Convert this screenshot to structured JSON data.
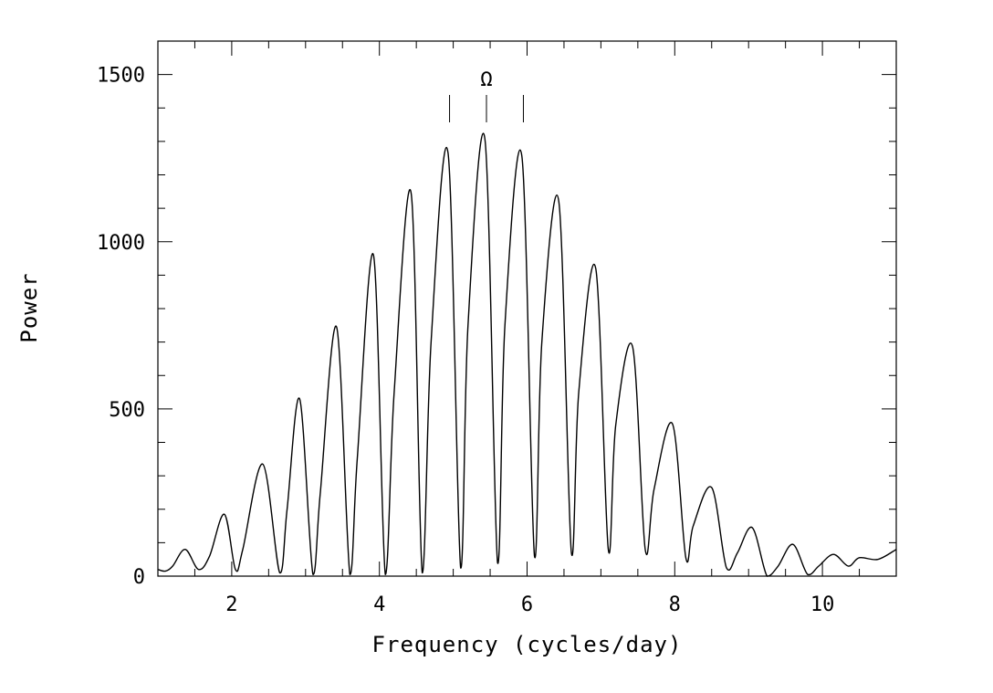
{
  "chart_data": {
    "type": "line",
    "title": "",
    "xlabel": "Frequency (cycles/day)",
    "ylabel": "Power",
    "xlim": [
      1,
      11
    ],
    "ylim": [
      0,
      1600
    ],
    "x_ticks": [
      2,
      4,
      6,
      8,
      10
    ],
    "x_tick_labels": [
      "2",
      "4",
      "6",
      "8",
      "10"
    ],
    "y_ticks": [
      0,
      500,
      1000,
      1500
    ],
    "y_tick_labels": [
      "0",
      "500",
      "1000",
      "1500"
    ],
    "x_minor_step": 0.5,
    "y_minor_step": 100,
    "grid": false,
    "line_color": "#000000",
    "series": [
      {
        "x": [
          1.0,
          1.1,
          1.2,
          1.37,
          1.55,
          1.7,
          1.9,
          2.05,
          2.15,
          2.42,
          2.65,
          2.75,
          2.92,
          3.1,
          3.2,
          3.42,
          3.6,
          3.7,
          3.92,
          4.08,
          4.2,
          4.43,
          4.58,
          4.7,
          4.93,
          5.1,
          5.2,
          5.43,
          5.6,
          5.7,
          5.93,
          6.1,
          6.2,
          6.43,
          6.6,
          6.7,
          6.93,
          7.1,
          7.2,
          7.43,
          7.6,
          7.72,
          7.97,
          8.15,
          8.25,
          8.5,
          8.7,
          8.85,
          9.05,
          9.25,
          9.4,
          9.6,
          9.8,
          9.95,
          10.15,
          10.35,
          10.5,
          10.75,
          11.0
        ],
        "y": [
          20,
          15,
          30,
          80,
          20,
          60,
          185,
          20,
          80,
          335,
          10,
          200,
          530,
          5,
          250,
          745,
          5,
          350,
          960,
          5,
          550,
          1145,
          10,
          700,
          1265,
          25,
          750,
          1305,
          40,
          750,
          1255,
          60,
          700,
          1120,
          70,
          550,
          920,
          80,
          450,
          685,
          80,
          260,
          455,
          55,
          150,
          265,
          25,
          70,
          145,
          0,
          30,
          95,
          5,
          30,
          65,
          30,
          55,
          50,
          80
        ]
      }
    ],
    "annotations": [
      {
        "label": "Ω",
        "x": 5.45
      },
      {
        "label": "",
        "x": 4.95
      },
      {
        "label": "",
        "x": 5.95
      }
    ]
  }
}
